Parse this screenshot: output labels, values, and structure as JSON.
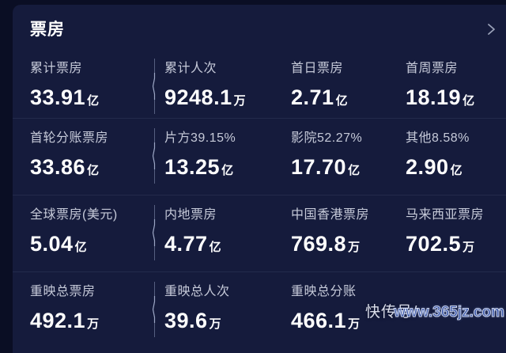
{
  "header": {
    "title": "票房"
  },
  "stats_rows": [
    {
      "cells": [
        {
          "label": "累计票房",
          "value": "33.91",
          "unit": "亿"
        },
        {
          "label": "累计人次",
          "value": "9248.1",
          "unit": "万"
        },
        {
          "label": "首日票房",
          "value": "2.71",
          "unit": "亿"
        },
        {
          "label": "首周票房",
          "value": "18.19",
          "unit": "亿"
        }
      ]
    },
    {
      "cells": [
        {
          "label": "首轮分账票房",
          "value": "33.86",
          "unit": "亿"
        },
        {
          "label": "片方39.15%",
          "value": "13.25",
          "unit": "亿"
        },
        {
          "label": "影院52.27%",
          "value": "17.70",
          "unit": "亿"
        },
        {
          "label": "其他8.58%",
          "value": "2.90",
          "unit": "亿"
        }
      ]
    },
    {
      "cells": [
        {
          "label": "全球票房(美元)",
          "value": "5.04",
          "unit": "亿"
        },
        {
          "label": "内地票房",
          "value": "4.77",
          "unit": "亿"
        },
        {
          "label": "中国香港票房",
          "value": "769.8",
          "unit": "万"
        },
        {
          "label": "马来西亚票房",
          "value": "702.5",
          "unit": "万"
        }
      ]
    },
    {
      "cells": [
        {
          "label": "重映总票房",
          "value": "492.1",
          "unit": "万"
        },
        {
          "label": "重映总人次",
          "value": "39.6",
          "unit": "万"
        },
        {
          "label": "重映总分账",
          "value": "466.1",
          "unit": "万"
        }
      ]
    }
  ],
  "watermark": {
    "back": "快传号/",
    "front": "www.365jz.com"
  },
  "colors": {
    "outer_bg": "#0a0e24",
    "panel_bg": "#151b3c",
    "label": "#c6cad9",
    "value": "#ffffff",
    "divider": "#8d97b8"
  }
}
